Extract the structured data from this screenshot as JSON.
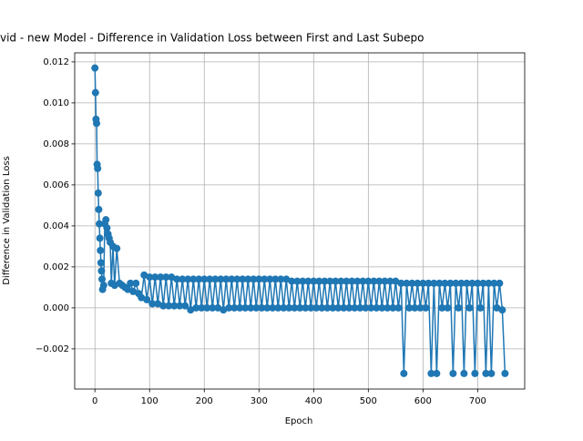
{
  "chart_data": {
    "type": "line",
    "title": "vid - new Model - Difference in Validation Loss between First and Last Subepo",
    "xlabel": "Epoch",
    "ylabel": "Difference in Validation Loss",
    "grid": true,
    "xlim": [
      -37,
      786
    ],
    "ylim": [
      -0.00396,
      0.01244
    ],
    "xticks": [
      0,
      100,
      200,
      300,
      400,
      500,
      600,
      700
    ],
    "yticks": [
      {
        "value": -0.002,
        "label": "−0.002"
      },
      {
        "value": 0,
        "label": "0.000"
      },
      {
        "value": 0.002,
        "label": "0.002"
      },
      {
        "value": 0.004,
        "label": "0.004"
      },
      {
        "value": 0.006,
        "label": "0.006"
      },
      {
        "value": 0.008,
        "label": "0.008"
      },
      {
        "value": 0.01,
        "label": "0.010"
      },
      {
        "value": 0.012,
        "label": "0.012"
      }
    ],
    "series": [
      {
        "color": "#1f77b4",
        "x": [
          0,
          1,
          2,
          3,
          4,
          5,
          6,
          7,
          8,
          9,
          10,
          11,
          12,
          13,
          14,
          16,
          18,
          20,
          22,
          24,
          26,
          28,
          30,
          33,
          36,
          40,
          45,
          50,
          55,
          60,
          65,
          70,
          75,
          80,
          85,
          90,
          95,
          100,
          105,
          110,
          115,
          120,
          125,
          130,
          135,
          140,
          145,
          150,
          155,
          160,
          165,
          170,
          175,
          180,
          185,
          190,
          195,
          200,
          205,
          210,
          215,
          220,
          225,
          230,
          235,
          240,
          245,
          250,
          255,
          260,
          265,
          270,
          275,
          280,
          285,
          290,
          295,
          300,
          305,
          310,
          315,
          320,
          325,
          330,
          335,
          340,
          345,
          350,
          355,
          360,
          365,
          370,
          375,
          380,
          385,
          390,
          395,
          400,
          405,
          410,
          415,
          420,
          425,
          430,
          435,
          440,
          445,
          450,
          455,
          460,
          465,
          470,
          475,
          480,
          485,
          490,
          495,
          500,
          505,
          510,
          515,
          520,
          525,
          530,
          535,
          540,
          545,
          550,
          555,
          560,
          565,
          570,
          575,
          580,
          585,
          590,
          595,
          600,
          605,
          610,
          615,
          620,
          625,
          630,
          635,
          640,
          645,
          650,
          655,
          660,
          665,
          670,
          675,
          680,
          685,
          690,
          695,
          700,
          705,
          710,
          715,
          720,
          725,
          730,
          735,
          740,
          745,
          750
        ],
        "values": [
          0.0117,
          0.0105,
          0.0092,
          0.009,
          0.007,
          0.0068,
          0.0056,
          0.0048,
          0.0041,
          0.0034,
          0.0028,
          0.0022,
          0.0018,
          0.0014,
          0.0009,
          0.0011,
          0.0041,
          0.0043,
          0.0039,
          0.0036,
          0.0034,
          0.0032,
          0.0012,
          0.003,
          0.0011,
          0.0029,
          0.0012,
          0.0011,
          0.001,
          0.0009,
          0.0012,
          0.0008,
          0.0012,
          0.0007,
          0.0005,
          0.0016,
          0.0004,
          0.0015,
          0.0002,
          0.0015,
          0.0002,
          0.0015,
          0.0001,
          0.0015,
          0.0001,
          0.0015,
          0.0001,
          0.0014,
          0.0001,
          0.0014,
          0.0001,
          0.0014,
          -0.0001,
          0.0014,
          0,
          0.0014,
          0,
          0.0014,
          0,
          0.0014,
          0,
          0.0014,
          0,
          0.0014,
          -0.0001,
          0.0014,
          0,
          0.0014,
          0,
          0.0014,
          0,
          0.0014,
          0,
          0.0014,
          0,
          0.0014,
          0,
          0.0014,
          0,
          0.0014,
          0,
          0.0014,
          0,
          0.0014,
          0,
          0.0014,
          0,
          0.0014,
          0,
          0.0013,
          0,
          0.0013,
          0,
          0.0013,
          0,
          0.0013,
          0,
          0.0013,
          0,
          0.0013,
          0,
          0.0013,
          0,
          0.0013,
          0,
          0.0013,
          0,
          0.0013,
          0,
          0.0013,
          0,
          0.0013,
          0,
          0.0013,
          0,
          0.0013,
          0,
          0.0013,
          0,
          0.0013,
          0,
          0.0013,
          0,
          0.0013,
          0,
          0.0013,
          0,
          0.0013,
          0,
          0.0012,
          -0.0032,
          0.0012,
          0,
          0.0012,
          0,
          0.0012,
          0,
          0.0012,
          0,
          0.0012,
          -0.0032,
          0.0012,
          -0.0032,
          0.0012,
          0,
          0.0012,
          0,
          0.0012,
          -0.0032,
          0.0012,
          0,
          0.0012,
          -0.0032,
          0.0012,
          0,
          0.0012,
          -0.0032,
          0.0012,
          0,
          0.0012,
          -0.0032,
          0.0012,
          -0.0032,
          0.0012,
          0,
          0.0012,
          -0.0001,
          -0.0032
        ]
      }
    ]
  }
}
